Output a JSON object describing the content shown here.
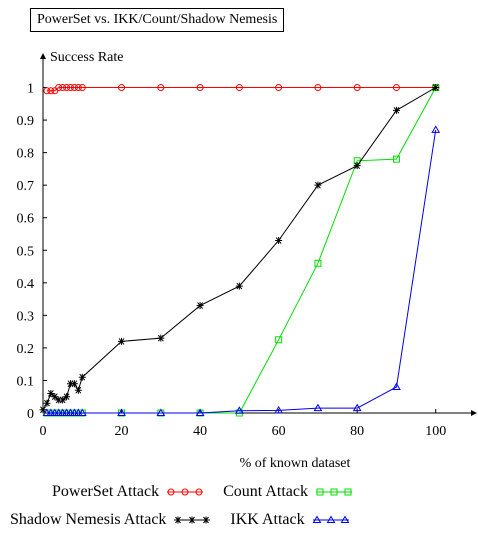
{
  "chart_data": {
    "type": "line",
    "title": "PowerSet vs. IKK/Count/Shadow Nemesis",
    "xlabel": "% of known dataset",
    "ylabel": "Success Rate",
    "xlim": [
      0,
      110
    ],
    "ylim": [
      0,
      1.1
    ],
    "xticks": [
      "0",
      "20",
      "40",
      "60",
      "80",
      "100"
    ],
    "xtick_values": [
      0,
      20,
      40,
      60,
      80,
      100
    ],
    "yticks": [
      "0",
      "0.1",
      "0.2",
      "0.3",
      "0.4",
      "0.5",
      "0.6",
      "0.7",
      "0.8",
      "0.9",
      "1"
    ],
    "ytick_values": [
      0,
      0.1,
      0.2,
      0.3,
      0.4,
      0.5,
      0.6,
      0.7,
      0.8,
      0.9,
      1
    ],
    "grid": false,
    "legend_position": "bottom",
    "series": [
      {
        "name": "PowerSet Attack",
        "color": "#ff0000",
        "marker": "circle",
        "x": [
          1,
          2,
          3,
          4,
          5,
          6,
          7,
          8,
          9,
          10,
          20,
          30,
          40,
          50,
          60,
          70,
          80,
          90,
          100
        ],
        "y": [
          0.99,
          0.99,
          0.99,
          1,
          1,
          1,
          1,
          1,
          1,
          1,
          1,
          1,
          1,
          1,
          1,
          1,
          1,
          1,
          1
        ]
      },
      {
        "name": "Count Attack",
        "color": "#00dd00",
        "marker": "square",
        "x": [
          1,
          2,
          3,
          4,
          5,
          6,
          7,
          8,
          9,
          10,
          20,
          30,
          40,
          50,
          60,
          70,
          80,
          90,
          100
        ],
        "y": [
          0,
          0,
          0,
          0,
          0,
          0,
          0,
          0,
          0,
          0,
          0,
          0,
          0,
          0,
          0.225,
          0.46,
          0.775,
          0.78,
          1
        ]
      },
      {
        "name": "Shadow Nemesis Attack",
        "color": "#000000",
        "marker": "star",
        "x": [
          0,
          1,
          2,
          3,
          4,
          5,
          6,
          7,
          8,
          9,
          10,
          20,
          30,
          40,
          50,
          60,
          70,
          80,
          90,
          100
        ],
        "y": [
          0.01,
          0.03,
          0.06,
          0.05,
          0.04,
          0.04,
          0.05,
          0.09,
          0.09,
          0.07,
          0.11,
          0.22,
          0.23,
          0.33,
          0.39,
          0.53,
          0.7,
          0.76,
          0.93,
          1
        ]
      },
      {
        "name": "IKK Attack",
        "color": "#0000ee",
        "marker": "triangle",
        "x": [
          1,
          2,
          3,
          4,
          5,
          6,
          7,
          8,
          9,
          10,
          20,
          30,
          40,
          50,
          60,
          70,
          80,
          90,
          100
        ],
        "y": [
          0,
          0,
          0,
          0,
          0,
          0,
          0,
          0,
          0,
          0,
          0,
          0,
          0,
          0.007,
          0.008,
          0.015,
          0.015,
          0.08,
          0.87
        ]
      }
    ]
  }
}
